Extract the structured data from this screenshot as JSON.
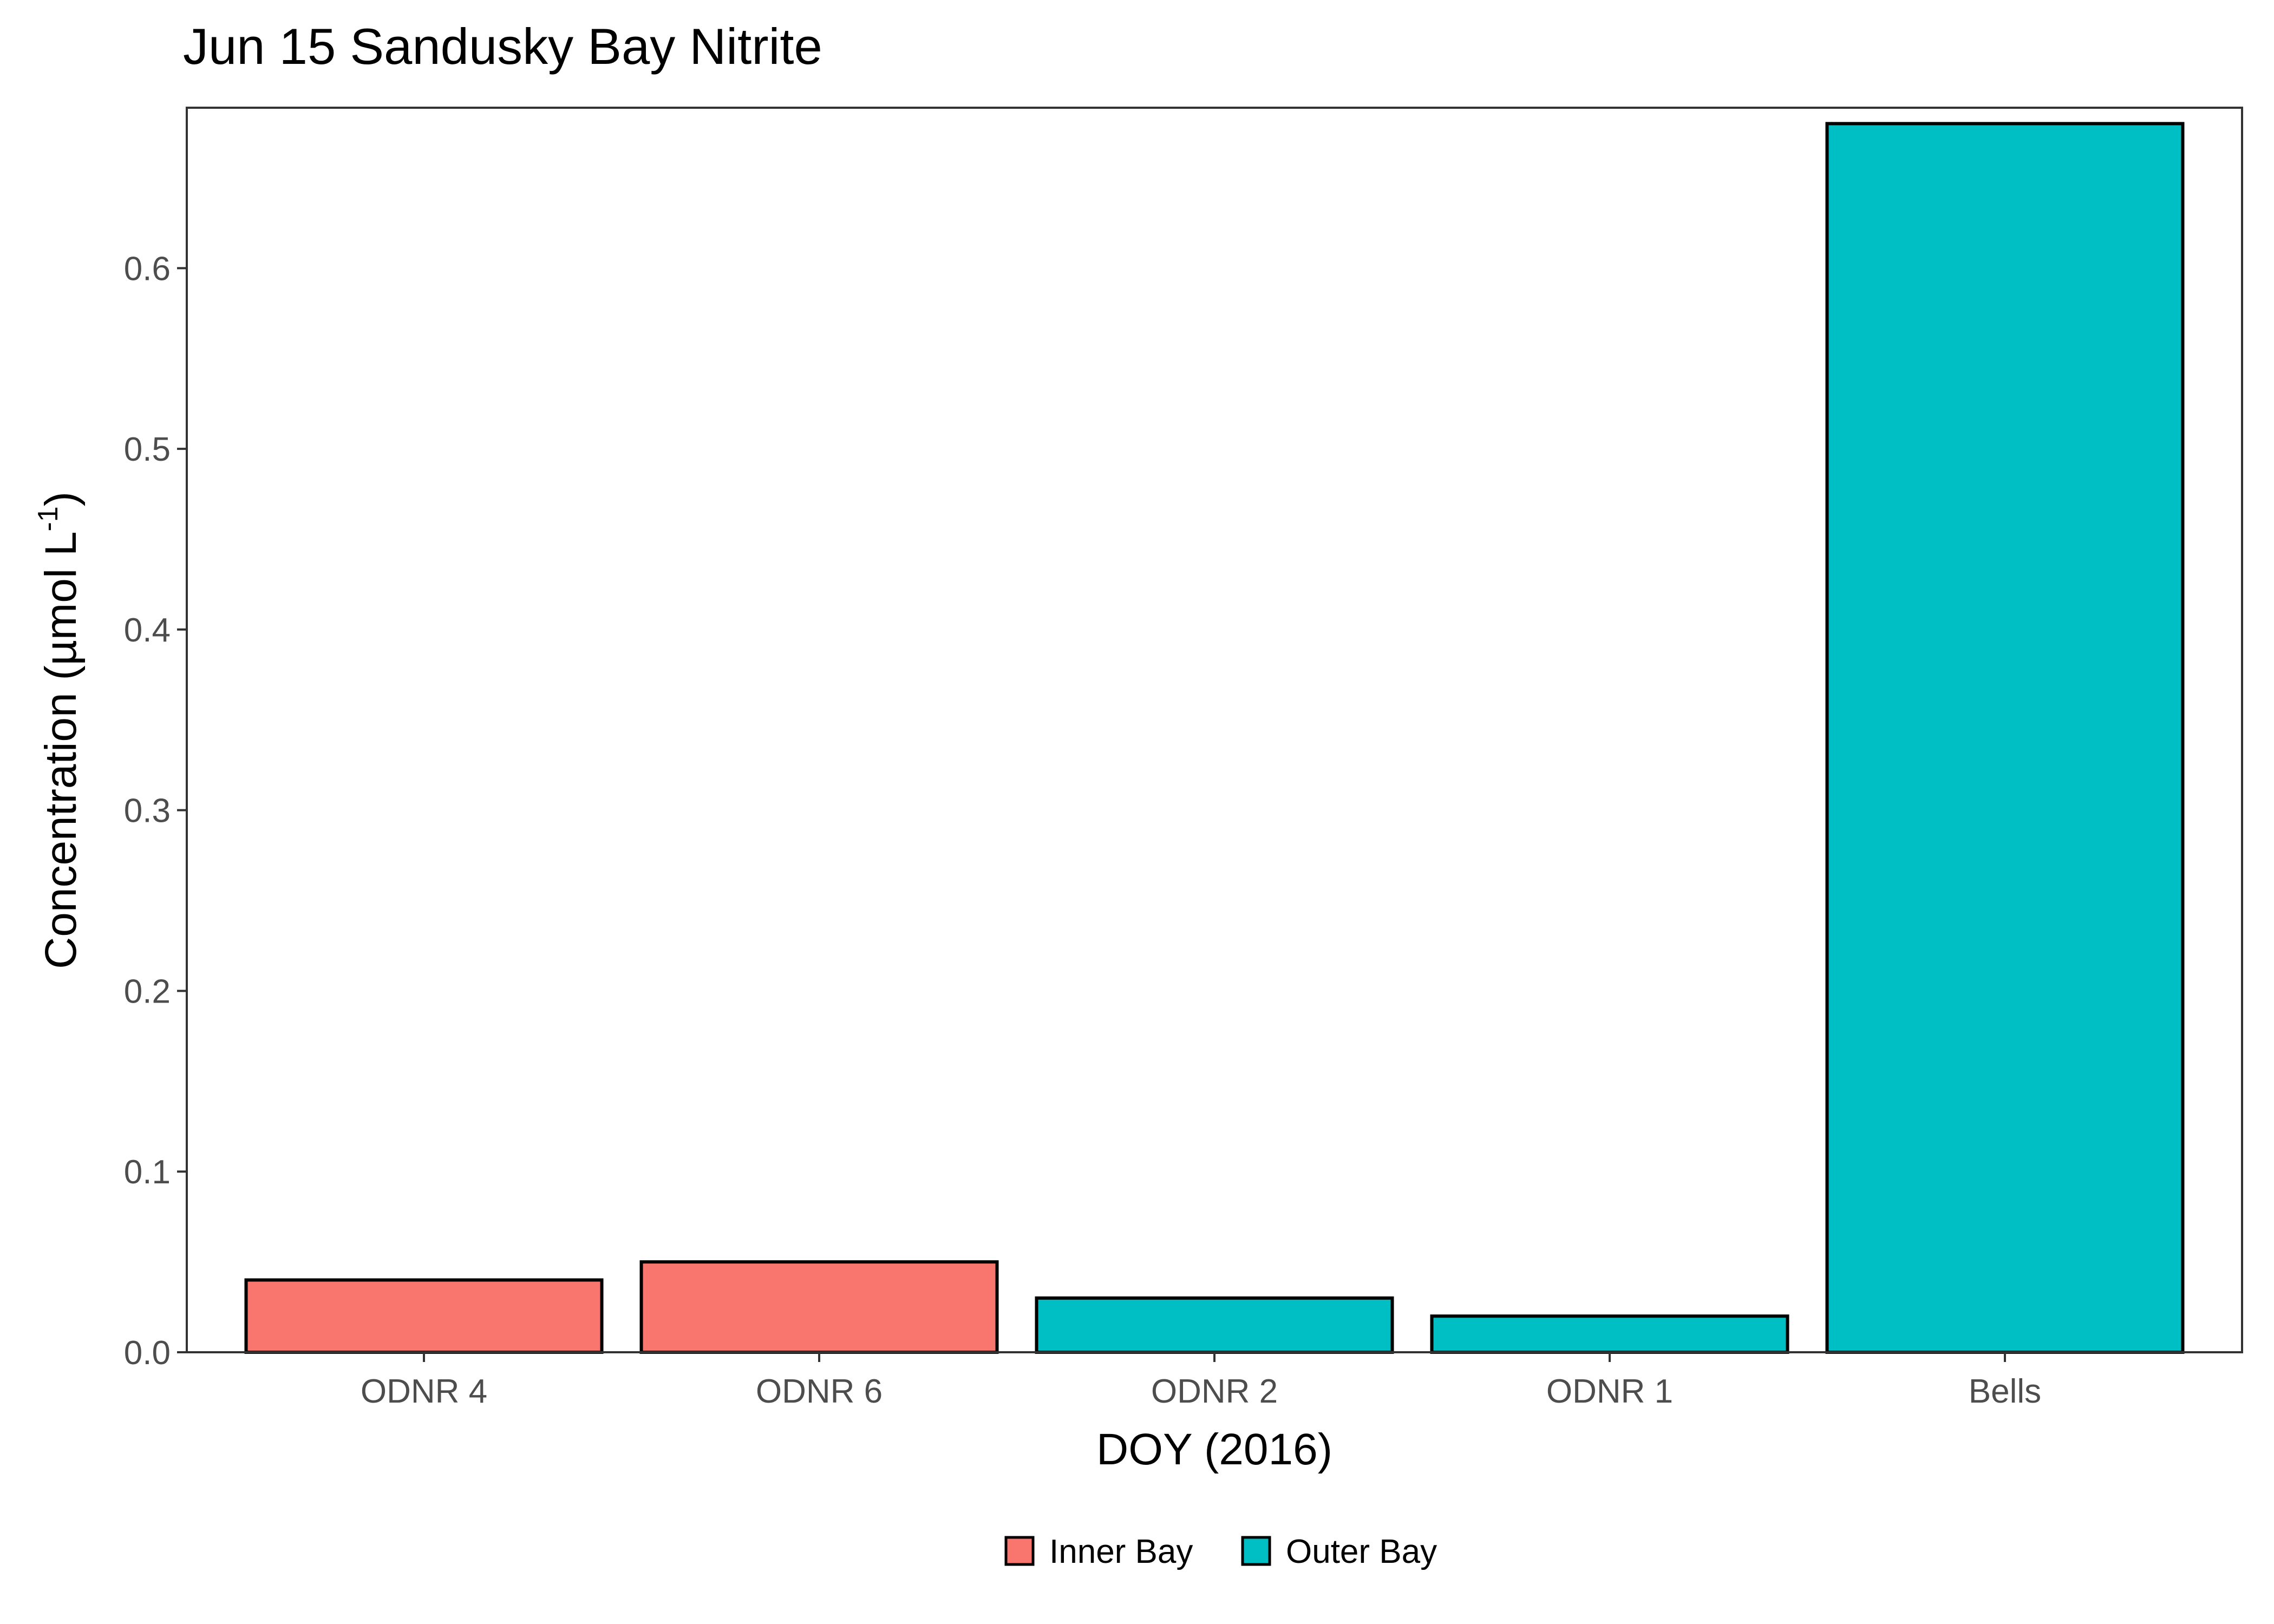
{
  "chart_data": {
    "type": "bar",
    "title": "Jun 15 Sandusky Bay Nitrite",
    "xlabel": "DOY (2016)",
    "ylabel": {
      "main": "Concentration (µmol L",
      "superscript": "-1",
      "close": ")"
    },
    "categories": [
      "ODNR 4",
      "ODNR 6",
      "ODNR 2",
      "ODNR 1",
      "Bells"
    ],
    "values": [
      0.04,
      0.05,
      0.03,
      0.02,
      0.68
    ],
    "groups": [
      "Inner Bay",
      "Inner Bay",
      "Outer Bay",
      "Outer Bay",
      "Outer Bay"
    ],
    "legend": {
      "position": "bottom",
      "entries": [
        {
          "name": "Inner Bay",
          "color": "#F8766D"
        },
        {
          "name": "Outer Bay",
          "color": "#00BFC4"
        }
      ]
    },
    "ylim": [
      0,
      0.684
    ],
    "yticks": [
      0.0,
      0.1,
      0.2,
      0.3,
      0.4,
      0.5,
      0.6
    ],
    "ytick_labels": [
      "0.0",
      "0.1",
      "0.2",
      "0.3",
      "0.4",
      "0.5",
      "0.6"
    ],
    "grid": false
  }
}
